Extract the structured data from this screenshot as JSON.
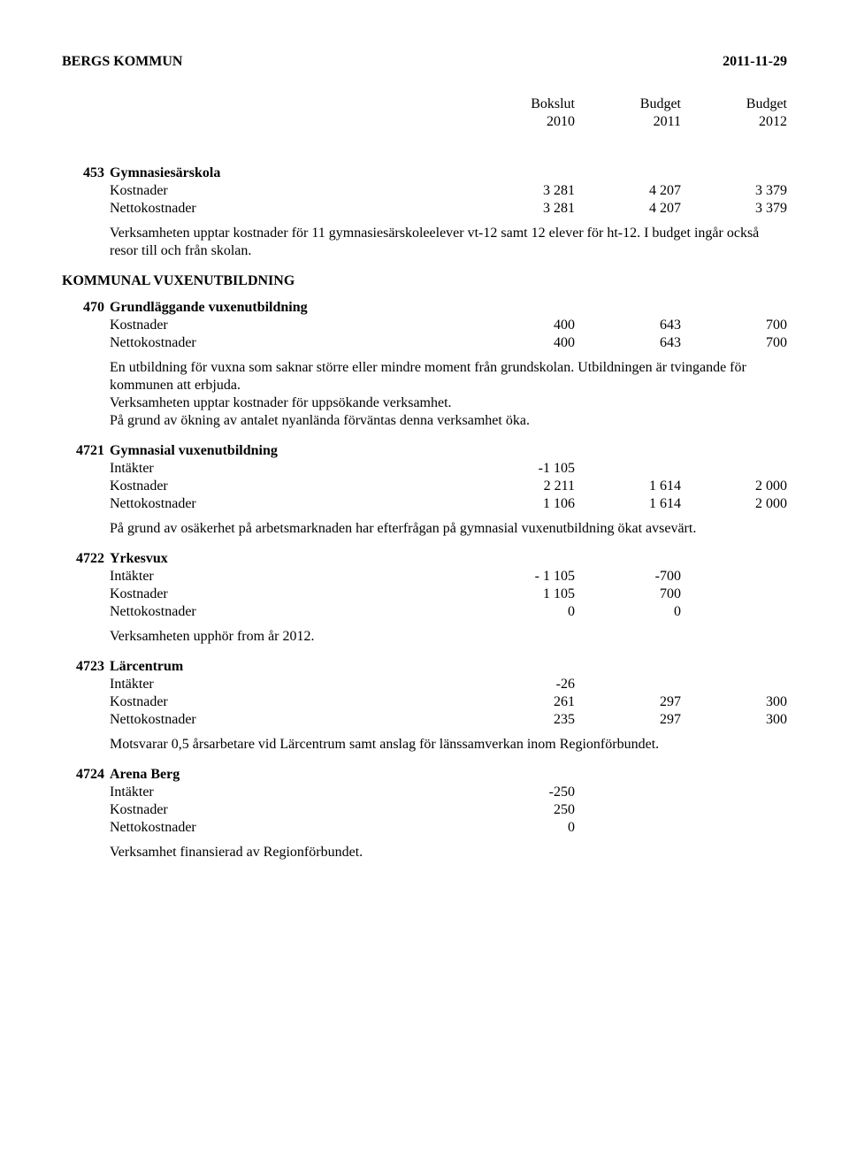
{
  "page_header": {
    "org": "BERGS KOMMUN",
    "date": "2011-11-29"
  },
  "column_headers": {
    "c1_top": "Bokslut",
    "c1_sub": "2010",
    "c2_top": "Budget",
    "c2_sub": "2011",
    "c3_top": "Budget",
    "c3_sub": "2012"
  },
  "labels": {
    "intakter": "Intäkter",
    "kostnader": "Kostnader",
    "nettokostnader": "Nettokostnader"
  },
  "sections": {
    "s453": {
      "code": "453",
      "name": "Gymnasiesärskola",
      "rows": {
        "kost": [
          "3 281",
          "4 207",
          "3 379"
        ],
        "netto": [
          "3 281",
          "4 207",
          "3 379"
        ]
      },
      "para": "Verksamheten upptar kostnader för 11 gymnasiesärskoleelever vt-12 samt 12 elever för ht-12. I budget ingår också resor till och från skolan."
    },
    "group_title": "KOMMUNAL VUXENUTBILDNING",
    "s470": {
      "code": "470",
      "name": "Grundläggande vuxenutbildning",
      "rows": {
        "kost": [
          "400",
          "643",
          "700"
        ],
        "netto": [
          "400",
          "643",
          "700"
        ]
      },
      "para": "En utbildning för vuxna som saknar större eller mindre moment från grundskolan. Utbildningen är tvingande för kommunen att erbjuda.\nVerksamheten upptar kostnader för uppsökande verksamhet.\nPå grund av ökning av antalet nyanlända förväntas denna verksamhet öka."
    },
    "s4721": {
      "code": "4721",
      "name": "Gymnasial vuxenutbildning",
      "rows": {
        "intakt": [
          "-1 105",
          "",
          ""
        ],
        "kost": [
          "2 211",
          "1 614",
          "2 000"
        ],
        "netto": [
          "1 106",
          "1 614",
          "2 000"
        ]
      },
      "para": "På grund av osäkerhet på arbetsmarknaden har efterfrågan på gymnasial vuxenutbildning ökat avsevärt."
    },
    "s4722": {
      "code": "4722",
      "name": "Yrkesvux",
      "rows": {
        "intakt": [
          "- 1 105",
          "-700",
          ""
        ],
        "kost": [
          "1 105",
          "700",
          ""
        ],
        "netto": [
          "0",
          "0",
          ""
        ]
      },
      "para": "Verksamheten upphör from år 2012."
    },
    "s4723": {
      "code": "4723",
      "name": "Lärcentrum",
      "rows": {
        "intakt": [
          "-26",
          "",
          ""
        ],
        "kost": [
          "261",
          "297",
          "300"
        ],
        "netto": [
          "235",
          "297",
          "300"
        ]
      },
      "para": "Motsvarar 0,5 årsarbetare vid Lärcentrum samt anslag för länssamverkan inom Regionförbundet."
    },
    "s4724": {
      "code": "4724",
      "name": "Arena Berg",
      "rows": {
        "intakt": [
          "-250",
          "",
          ""
        ],
        "kost": [
          "250",
          "",
          ""
        ],
        "netto": [
          "0",
          "",
          ""
        ]
      },
      "para": "Verksamhet finansierad av Regionförbundet."
    }
  }
}
